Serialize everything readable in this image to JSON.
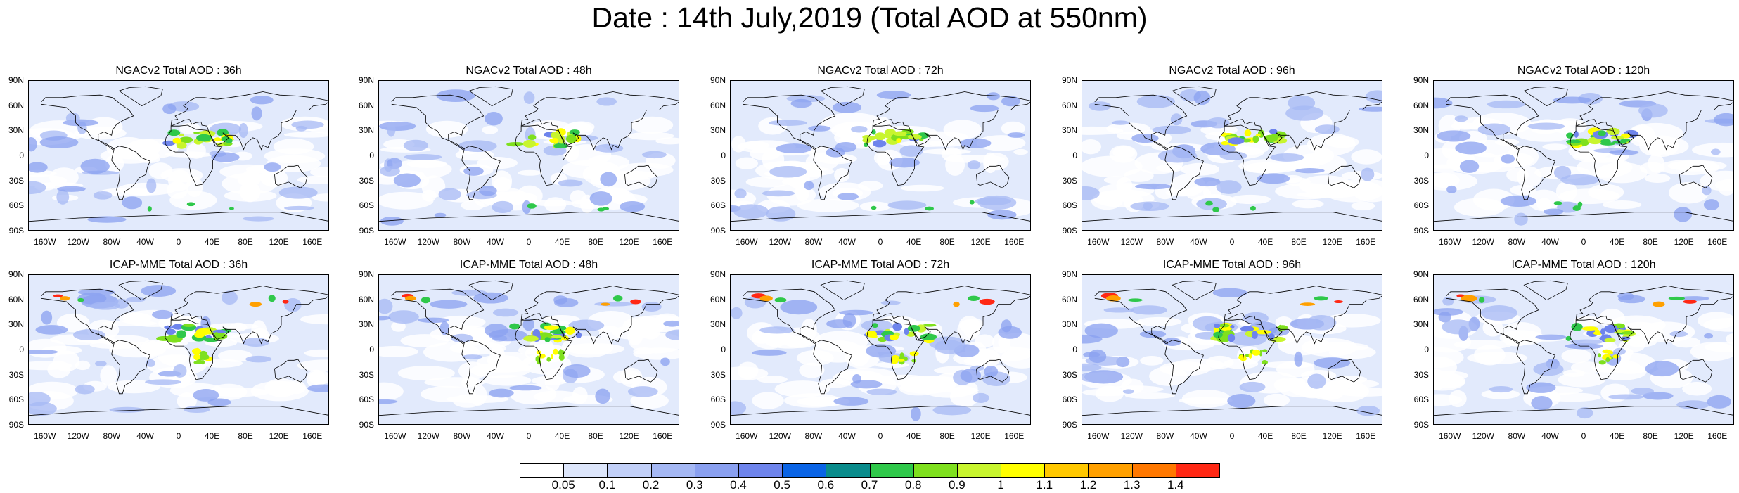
{
  "title": "Date : 14th July,2019 (Total AOD at 550nm)",
  "lat_labels": [
    "90N",
    "60N",
    "30N",
    "0",
    "30S",
    "60S",
    "90S"
  ],
  "lon_labels": [
    "160W",
    "120W",
    "80W",
    "40W",
    "0",
    "40E",
    "80E",
    "120E",
    "160E"
  ],
  "panels": [
    {
      "title": "NGACv2 Total AOD : 36h",
      "model": "NGACv2",
      "forecast_hour": "36h"
    },
    {
      "title": "NGACv2 Total AOD : 48h",
      "model": "NGACv2",
      "forecast_hour": "48h"
    },
    {
      "title": "NGACv2 Total AOD : 72h",
      "model": "NGACv2",
      "forecast_hour": "72h"
    },
    {
      "title": "NGACv2 Total AOD : 96h",
      "model": "NGACv2",
      "forecast_hour": "96h"
    },
    {
      "title": "NGACv2 Total AOD : 120h",
      "model": "NGACv2",
      "forecast_hour": "120h"
    },
    {
      "title": "ICAP-MME Total AOD : 36h",
      "model": "ICAP-MME",
      "forecast_hour": "36h"
    },
    {
      "title": "ICAP-MME Total AOD : 48h",
      "model": "ICAP-MME",
      "forecast_hour": "48h"
    },
    {
      "title": "ICAP-MME Total AOD : 72h",
      "model": "ICAP-MME",
      "forecast_hour": "72h"
    },
    {
      "title": "ICAP-MME Total AOD : 96h",
      "model": "ICAP-MME",
      "forecast_hour": "96h"
    },
    {
      "title": "ICAP-MME Total AOD : 120h",
      "model": "ICAP-MME",
      "forecast_hour": "120h"
    }
  ],
  "colorbar": {
    "labels": [
      "0.05",
      "0.1",
      "0.2",
      "0.3",
      "0.4",
      "0.5",
      "0.6",
      "0.7",
      "0.8",
      "0.9",
      "1",
      "1.1",
      "1.2",
      "1.3",
      "1.4"
    ],
    "colors": [
      "#ffffff",
      "#dde6fb",
      "#c2d0f8",
      "#a5b8f4",
      "#8aa0f0",
      "#6e84ec",
      "#0a64e6",
      "#0a8c8c",
      "#2fc84a",
      "#7fe01e",
      "#c8f52e",
      "#ffff00",
      "#ffc800",
      "#ffa000",
      "#ff7800",
      "#ff2814"
    ]
  }
}
